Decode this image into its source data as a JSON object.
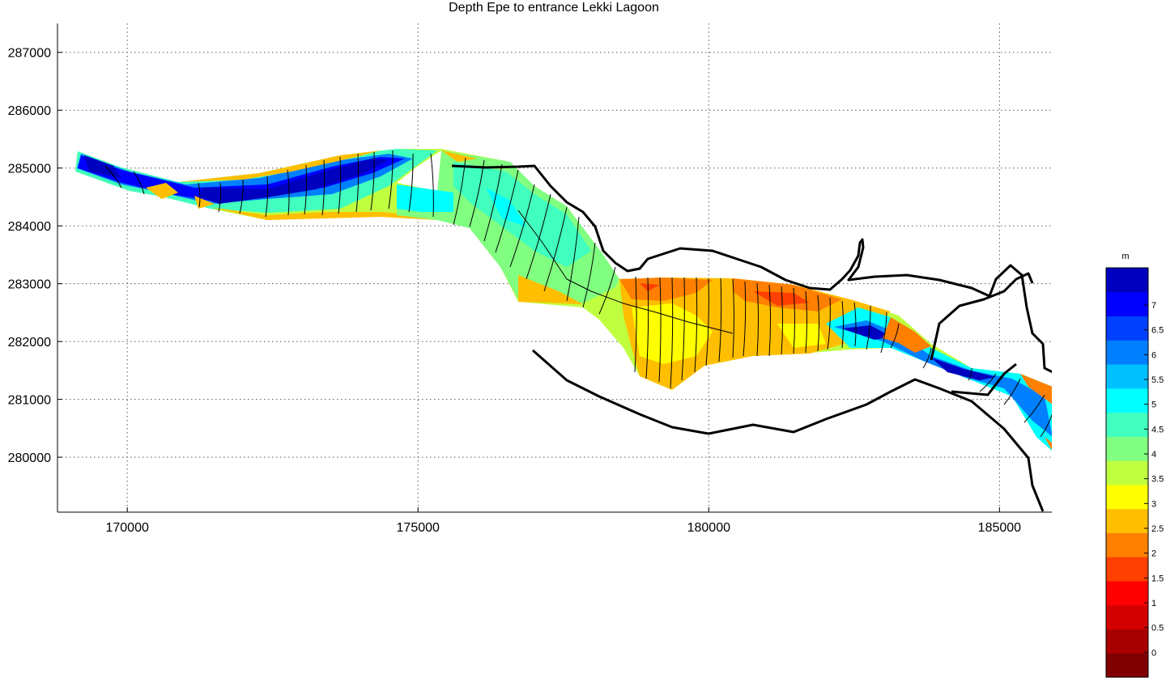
{
  "title": "Depth Epe to entrance Lekki Lagoon",
  "axes": {
    "xlim": [
      168800,
      185900
    ],
    "ylim": [
      279050,
      287500
    ],
    "xticks": [
      170000,
      175000,
      180000,
      185000
    ],
    "yticks": [
      280000,
      281000,
      282000,
      283000,
      284000,
      285000,
      286000,
      287000
    ],
    "grid": "on"
  },
  "colorbar": {
    "unit": "m",
    "range": [
      -0.5,
      7.75
    ],
    "ticks": [
      "7",
      "6.5",
      "6",
      "5.5",
      "5",
      "4.5",
      "4",
      "3.5",
      "3",
      "2.5",
      "2",
      "1.5",
      "1",
      "0.5",
      "0"
    ],
    "colors": [
      "#7f0000",
      "#a80000",
      "#d40000",
      "#ff0000",
      "#ff4000",
      "#ff8000",
      "#ffbf00",
      "#ffff00",
      "#bfff40",
      "#80ff80",
      "#40ffbf",
      "#00ffff",
      "#00bfff",
      "#0080ff",
      "#0040ff",
      "#0000ff",
      "#0000bf"
    ]
  },
  "icons": {
    "shoreline": "black-shoreline-line",
    "transect": "survey-transect-line"
  }
}
